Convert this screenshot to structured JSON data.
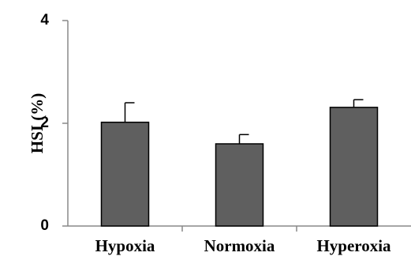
{
  "chart_data": {
    "type": "bar",
    "title": "",
    "xlabel": "",
    "ylabel": "HSI (%)",
    "categories": [
      "Hypoxia",
      "Normoxia",
      "Hyperoxia"
    ],
    "values": [
      2.02,
      1.6,
      2.31
    ],
    "errors": [
      0.38,
      0.18,
      0.15
    ],
    "ylim": [
      0,
      4
    ],
    "yticks": [
      "0",
      "2",
      "4"
    ],
    "grid": false,
    "legend": "none",
    "colors": {
      "bar": "#5f5f5f",
      "bar_edge": "#000000",
      "axis": "#888888",
      "error_bar": "#000000"
    }
  }
}
